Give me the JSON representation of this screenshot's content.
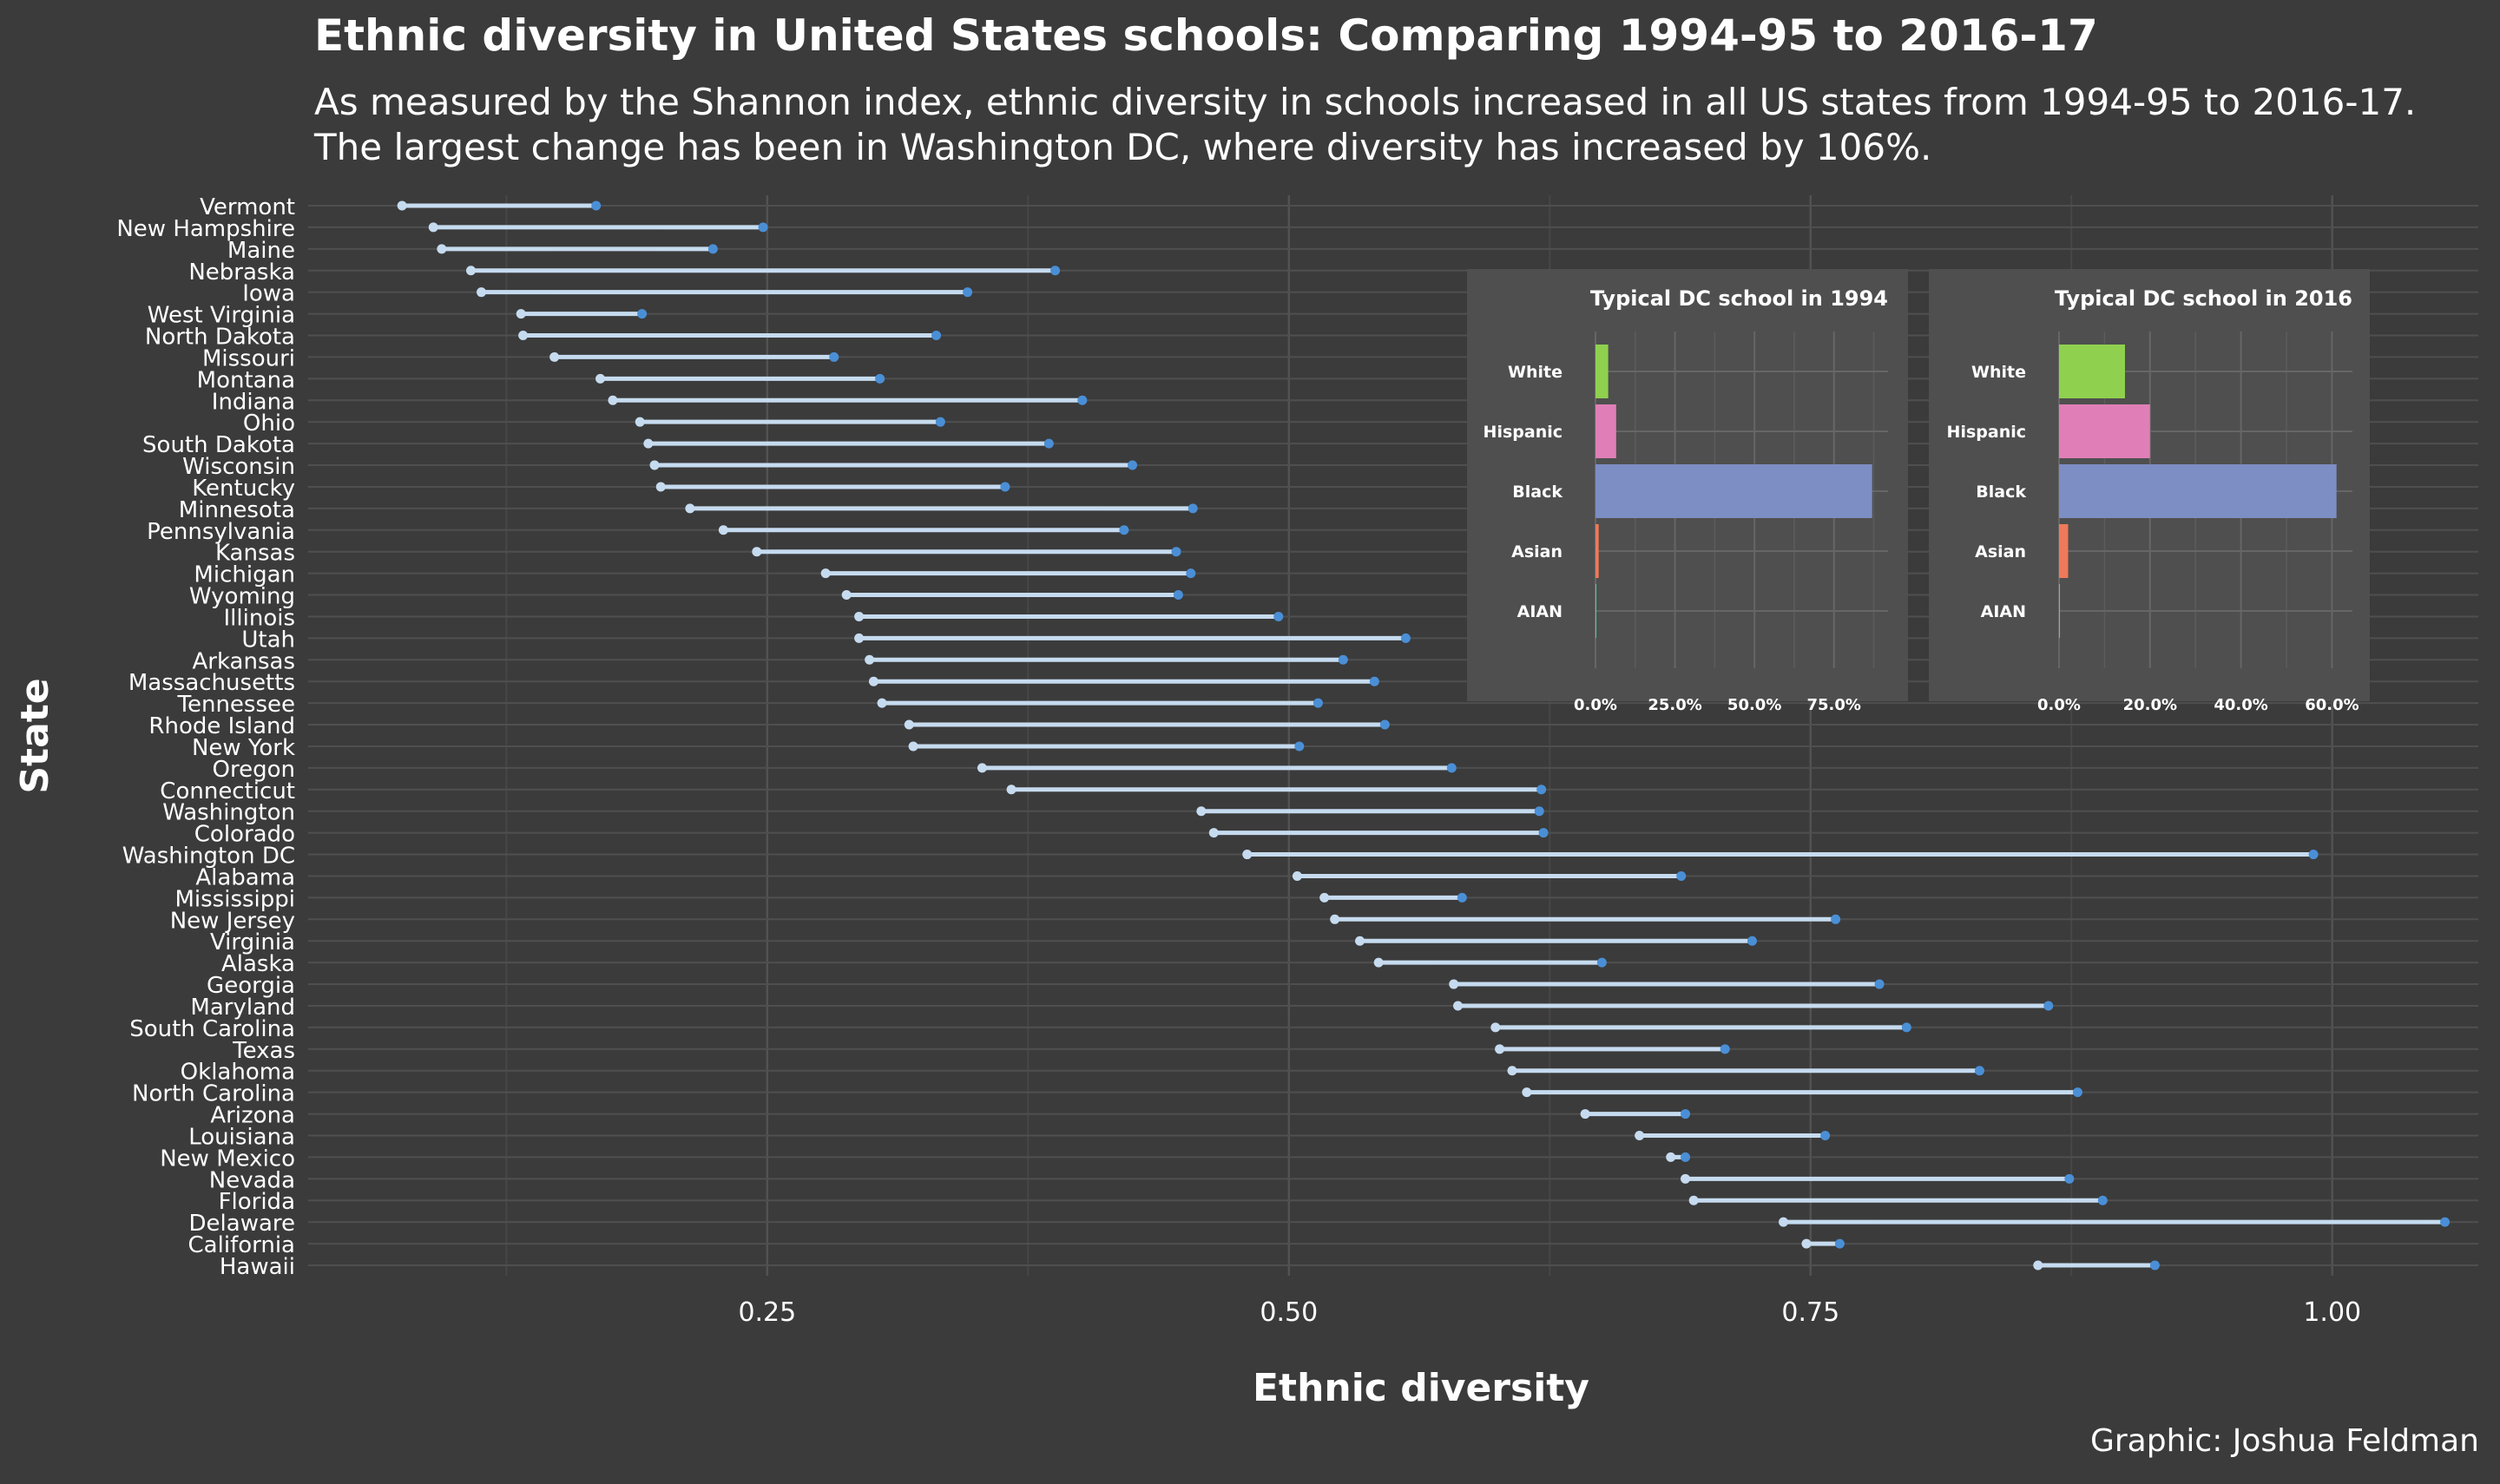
{
  "chart_data": [
    {
      "type": "dumbbell",
      "title": "Ethnic diversity in United States schools: Comparing 1994-95 to 2016-17",
      "subtitle": "As measured by the Shannon index, ethnic diversity in schools increased in all US states from 1994-95 to 2016-17. The largest change has been in Washington DC, where diversity has increased by 106%.",
      "xlabel": "Ethnic diversity",
      "ylabel": "State",
      "xlim": [
        0.03,
        1.07
      ],
      "xticks": [
        "0.25",
        "0.50",
        "0.75",
        "1.00"
      ],
      "grid": true,
      "legend": "none",
      "colors": {
        "start": "#c6dbef",
        "end": "#4a8fd6",
        "segment": "#c6dbef"
      },
      "states": [
        {
          "name": "Vermont",
          "start": 0.075,
          "end": 0.168
        },
        {
          "name": "New Hampshire",
          "start": 0.09,
          "end": 0.248
        },
        {
          "name": "Maine",
          "start": 0.094,
          "end": 0.224
        },
        {
          "name": "Nebraska",
          "start": 0.108,
          "end": 0.388
        },
        {
          "name": "Iowa",
          "start": 0.113,
          "end": 0.346
        },
        {
          "name": "West Virginia",
          "start": 0.132,
          "end": 0.19
        },
        {
          "name": "North Dakota",
          "start": 0.133,
          "end": 0.331
        },
        {
          "name": "Missouri",
          "start": 0.148,
          "end": 0.282
        },
        {
          "name": "Montana",
          "start": 0.17,
          "end": 0.304
        },
        {
          "name": "Indiana",
          "start": 0.176,
          "end": 0.401
        },
        {
          "name": "Ohio",
          "start": 0.189,
          "end": 0.333
        },
        {
          "name": "South Dakota",
          "start": 0.193,
          "end": 0.385
        },
        {
          "name": "Wisconsin",
          "start": 0.196,
          "end": 0.425
        },
        {
          "name": "Kentucky",
          "start": 0.199,
          "end": 0.364
        },
        {
          "name": "Minnesota",
          "start": 0.213,
          "end": 0.454
        },
        {
          "name": "Pennsylvania",
          "start": 0.229,
          "end": 0.421
        },
        {
          "name": "Kansas",
          "start": 0.245,
          "end": 0.446
        },
        {
          "name": "Michigan",
          "start": 0.278,
          "end": 0.453
        },
        {
          "name": "Wyoming",
          "start": 0.288,
          "end": 0.447
        },
        {
          "name": "Illinois",
          "start": 0.294,
          "end": 0.495
        },
        {
          "name": "Utah",
          "start": 0.294,
          "end": 0.556
        },
        {
          "name": "Arkansas",
          "start": 0.299,
          "end": 0.526
        },
        {
          "name": "Massachusetts",
          "start": 0.301,
          "end": 0.541
        },
        {
          "name": "Tennessee",
          "start": 0.305,
          "end": 0.514
        },
        {
          "name": "Rhode Island",
          "start": 0.318,
          "end": 0.546
        },
        {
          "name": "New York",
          "start": 0.32,
          "end": 0.505
        },
        {
          "name": "Oregon",
          "start": 0.353,
          "end": 0.578
        },
        {
          "name": "Connecticut",
          "start": 0.367,
          "end": 0.621
        },
        {
          "name": "Washington",
          "start": 0.458,
          "end": 0.62
        },
        {
          "name": "Colorado",
          "start": 0.464,
          "end": 0.622
        },
        {
          "name": "Washington DC",
          "start": 0.48,
          "end": 0.991
        },
        {
          "name": "Alabama",
          "start": 0.504,
          "end": 0.688
        },
        {
          "name": "Mississippi",
          "start": 0.517,
          "end": 0.583
        },
        {
          "name": "New Jersey",
          "start": 0.522,
          "end": 0.762
        },
        {
          "name": "Virginia",
          "start": 0.534,
          "end": 0.722
        },
        {
          "name": "Alaska",
          "start": 0.543,
          "end": 0.65
        },
        {
          "name": "Georgia",
          "start": 0.579,
          "end": 0.783
        },
        {
          "name": "Maryland",
          "start": 0.581,
          "end": 0.864
        },
        {
          "name": "South Carolina",
          "start": 0.599,
          "end": 0.796
        },
        {
          "name": "Texas",
          "start": 0.601,
          "end": 0.709
        },
        {
          "name": "Oklahoma",
          "start": 0.607,
          "end": 0.831
        },
        {
          "name": "North Carolina",
          "start": 0.614,
          "end": 0.878
        },
        {
          "name": "Arizona",
          "start": 0.642,
          "end": 0.69
        },
        {
          "name": "Louisiana",
          "start": 0.668,
          "end": 0.757
        },
        {
          "name": "New Mexico",
          "start": 0.683,
          "end": 0.69
        },
        {
          "name": "Nevada",
          "start": 0.69,
          "end": 0.874
        },
        {
          "name": "Florida",
          "start": 0.694,
          "end": 0.89
        },
        {
          "name": "Delaware",
          "start": 0.737,
          "end": 1.054
        },
        {
          "name": "California",
          "start": 0.748,
          "end": 0.764
        },
        {
          "name": "Hawaii",
          "start": 0.859,
          "end": 0.915
        }
      ]
    },
    {
      "type": "bar",
      "orientation": "horizontal",
      "title": "Typical DC school in 1994",
      "categories": [
        "White",
        "Hispanic",
        "Black",
        "Asian",
        "AIAN"
      ],
      "values": [
        4.0,
        6.5,
        87.0,
        1.0,
        0.1
      ],
      "colors": [
        "#8fd14f",
        "#e07fb7",
        "#7d8ec4",
        "#ef7a5b",
        "#66c2a5"
      ],
      "xlim": [
        0,
        92
      ],
      "xticks": [
        0,
        25,
        50,
        75
      ],
      "xtick_labels": [
        "0.0%",
        "25.0%",
        "50.0%",
        "75.0%"
      ]
    },
    {
      "type": "bar",
      "orientation": "horizontal",
      "title": "Typical DC school in 2016",
      "categories": [
        "White",
        "Hispanic",
        "Black",
        "Asian",
        "AIAN"
      ],
      "values": [
        14.5,
        20.0,
        61.0,
        2.0,
        0.2
      ],
      "colors": [
        "#8fd14f",
        "#e07fb7",
        "#7d8ec4",
        "#ef7a5b",
        "#66c2a5"
      ],
      "xlim": [
        0,
        64.5
      ],
      "xticks": [
        0,
        20,
        40,
        60
      ],
      "xtick_labels": [
        "0.0%",
        "20.0%",
        "40.0%",
        "60.0%"
      ]
    }
  ],
  "credit": "Graphic: Joshua Feldman"
}
